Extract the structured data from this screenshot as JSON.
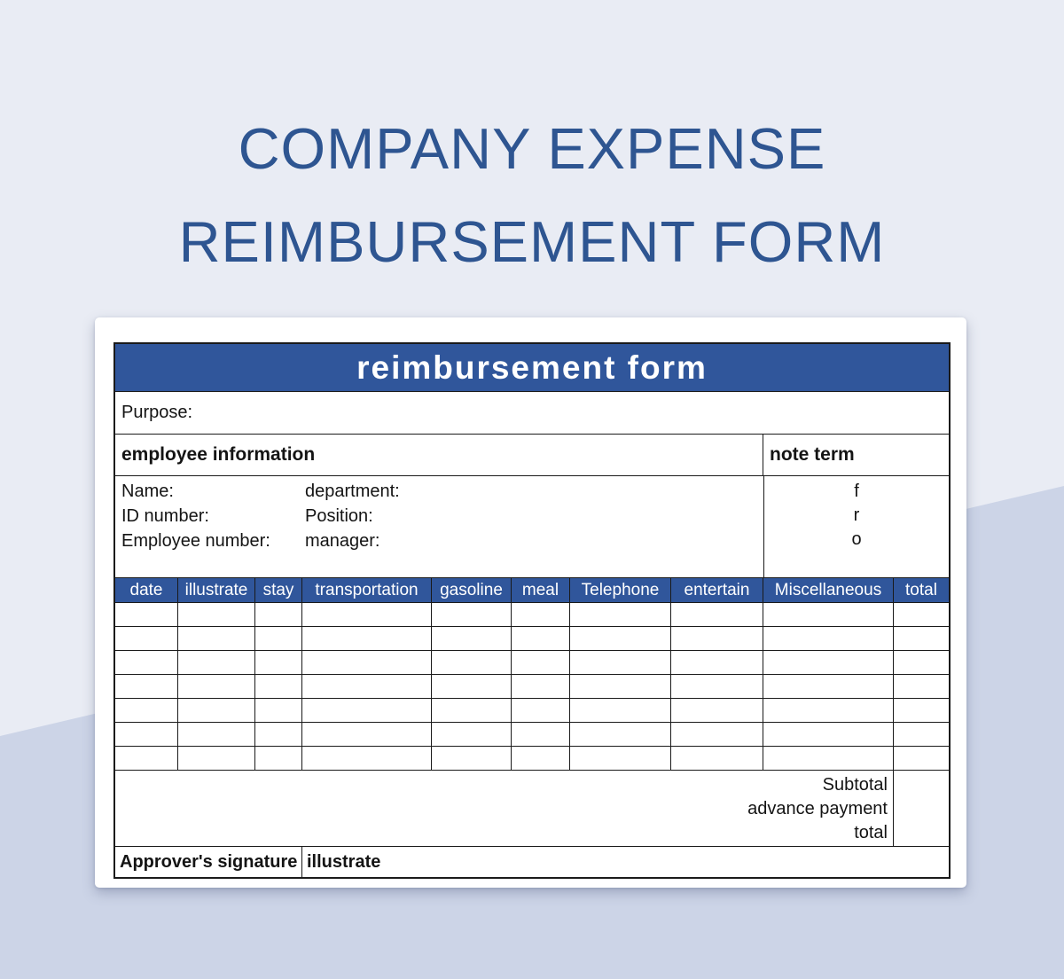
{
  "page_title": {
    "line1": "COMPANY EXPENSE",
    "line2": "REIMBURSEMENT FORM"
  },
  "form": {
    "header_title": "reimbursement form",
    "purpose_label": "Purpose:",
    "employee_info": {
      "section_label": "employee information",
      "fields_col1": [
        "Name:",
        "ID number:",
        "Employee number:"
      ],
      "fields_col2": [
        "department:",
        "Position:",
        "manager:"
      ]
    },
    "note_term": {
      "label": "note term",
      "lines": [
        "f",
        "r",
        "o"
      ]
    },
    "expense_table": {
      "columns": [
        "date",
        "illustrate",
        "stay",
        "transportation",
        "gasoline",
        "meal",
        "Telephone",
        "entertain",
        "Miscellaneous",
        "total"
      ],
      "empty_row_count": 7
    },
    "totals": {
      "labels": [
        "Subtotal",
        "advance payment",
        "total"
      ]
    },
    "footer": {
      "approver_label": "Approver's signature",
      "illustrate_label": "illustrate"
    }
  },
  "colors": {
    "accent_blue": "#30569B",
    "title_blue": "#2E5591",
    "background_top": "#E9ECF4",
    "background_bottom": "#CCD4E7"
  }
}
